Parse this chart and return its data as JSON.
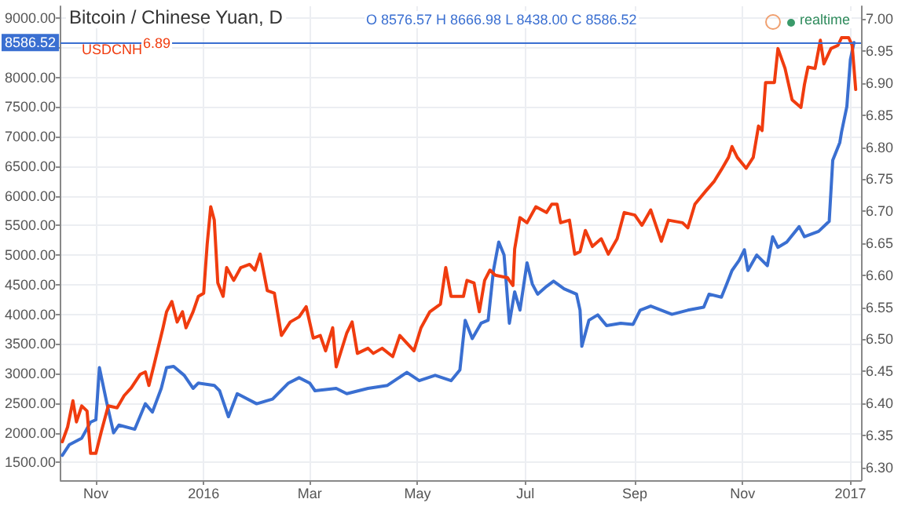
{
  "chart_data": {
    "type": "line",
    "title": "Bitcoin / Chinese Yuan, D",
    "annotations": [
      "O 8576.57 H 8666.98 L 8438.00 C 8586.52",
      "6.89",
      "realtime"
    ],
    "xlim": [
      "2015-10-12",
      "2017-01-07"
    ],
    "xticks": [
      {
        "value": "2015-11-01",
        "label": "Nov"
      },
      {
        "value": "2016-01-01",
        "label": "2016"
      },
      {
        "value": "2016-03-01",
        "label": "Mar"
      },
      {
        "value": "2016-05-01",
        "label": "May"
      },
      {
        "value": "2016-07-01",
        "label": "Jul"
      },
      {
        "value": "2016-09-01",
        "label": "Sep"
      },
      {
        "value": "2016-11-01",
        "label": "Nov"
      },
      {
        "value": "2017-01-01",
        "label": "2017"
      }
    ],
    "ylim": [
      1200,
      9200
    ],
    "yticks": [
      {
        "value": 1500,
        "label": "1500.00"
      },
      {
        "value": 2000,
        "label": "2000.00"
      },
      {
        "value": 2500,
        "label": "2500.00"
      },
      {
        "value": 3000,
        "label": "3000.00"
      },
      {
        "value": 3500,
        "label": "3500.00"
      },
      {
        "value": 4000,
        "label": "4000.00"
      },
      {
        "value": 4500,
        "label": "4500.00"
      },
      {
        "value": 5000,
        "label": "5000.00"
      },
      {
        "value": 5500,
        "label": "5500.00"
      },
      {
        "value": 6000,
        "label": "6000.00"
      },
      {
        "value": 6500,
        "label": "6500.00"
      },
      {
        "value": 7000,
        "label": "7000.00"
      },
      {
        "value": 7500,
        "label": "7500.00"
      },
      {
        "value": 8000,
        "label": "8000.00"
      },
      {
        "value": 8500,
        "label": null
      },
      {
        "value": 9000,
        "label": "9000.00"
      }
    ],
    "y2lim": [
      6.28,
      7.02
    ],
    "y2ticks": [
      {
        "value": 6.3,
        "label": "6.30"
      },
      {
        "value": 6.35,
        "label": "6.35"
      },
      {
        "value": 6.4,
        "label": "6.40"
      },
      {
        "value": 6.45,
        "label": "6.45"
      },
      {
        "value": 6.5,
        "label": "6.50"
      },
      {
        "value": 6.55,
        "label": "6.55"
      },
      {
        "value": 6.6,
        "label": "6.60"
      },
      {
        "value": 6.65,
        "label": "6.65"
      },
      {
        "value": 6.7,
        "label": "6.70"
      },
      {
        "value": 6.75,
        "label": "6.75"
      },
      {
        "value": 6.8,
        "label": "6.80"
      },
      {
        "value": 6.85,
        "label": "6.85"
      },
      {
        "value": 6.9,
        "label": "6.90"
      },
      {
        "value": 6.95,
        "label": "6.95"
      },
      {
        "value": 7,
        "label": "7.00"
      }
    ],
    "ref_lines": [
      {
        "axis": "y",
        "value": 8586.52,
        "label": "8586.52",
        "color": "#3a6fd1"
      }
    ],
    "grid": true,
    "legend": "top left",
    "marker": "none",
    "line_style": "solid",
    "series": [
      {
        "color": "#3a6fd1",
        "x": [
          "2015-10-13",
          "2015-10-17",
          "2015-10-24",
          "2015-10-29",
          "2015-11-01",
          "2015-11-03",
          "2015-11-07",
          "2015-11-11",
          "2015-11-14",
          "2015-11-23",
          "2015-11-29",
          "2015-12-03",
          "2015-12-08",
          "2015-12-11",
          "2015-12-15",
          "2015-12-21",
          "2015-12-26",
          "2015-12-29",
          "2016-01-07",
          "2016-01-10",
          "2016-01-15",
          "2016-01-20",
          "2016-01-31",
          "2016-02-09",
          "2016-02-18",
          "2016-02-24",
          "2016-03-01",
          "2016-03-04",
          "2016-03-16",
          "2016-03-22",
          "2016-04-03",
          "2016-04-14",
          "2016-04-25",
          "2016-05-02",
          "2016-05-11",
          "2016-05-20",
          "2016-05-25",
          "2016-05-28",
          "2016-06-01",
          "2016-06-06",
          "2016-06-10",
          "2016-06-13",
          "2016-06-16",
          "2016-06-19",
          "2016-06-22",
          "2016-06-25",
          "2016-06-28",
          "2016-07-02",
          "2016-07-05",
          "2016-07-08",
          "2016-07-13",
          "2016-07-17",
          "2016-07-23",
          "2016-07-30",
          "2016-08-01",
          "2016-08-02",
          "2016-08-06",
          "2016-08-11",
          "2016-08-16",
          "2016-08-24",
          "2016-08-31",
          "2016-09-04",
          "2016-09-10",
          "2016-09-22",
          "2016-10-01",
          "2016-10-10",
          "2016-10-13",
          "2016-10-20",
          "2016-10-23",
          "2016-10-26",
          "2016-10-30",
          "2016-11-02",
          "2016-11-04",
          "2016-11-09",
          "2016-11-15",
          "2016-11-18",
          "2016-11-21",
          "2016-11-26",
          "2016-12-03",
          "2016-12-06",
          "2016-12-14",
          "2016-12-20",
          "2016-12-22",
          "2016-12-26",
          "2016-12-27",
          "2016-12-30",
          "2017-01-01",
          "2017-01-03"
        ],
        "values": [
          1620,
          1800,
          1910,
          2180,
          2220,
          3100,
          2530,
          2000,
          2130,
          2060,
          2490,
          2350,
          2750,
          3100,
          3120,
          2970,
          2750,
          2840,
          2800,
          2710,
          2270,
          2660,
          2490,
          2570,
          2840,
          2930,
          2840,
          2710,
          2750,
          2660,
          2750,
          2800,
          3020,
          2880,
          2970,
          2880,
          3060,
          3900,
          3590,
          3850,
          3900,
          4740,
          5220,
          5000,
          3850,
          4380,
          4070,
          4870,
          4510,
          4340,
          4470,
          4560,
          4430,
          4340,
          4070,
          3460,
          3900,
          3990,
          3810,
          3850,
          3830,
          4070,
          4140,
          4000,
          4070,
          4120,
          4340,
          4290,
          4510,
          4740,
          4910,
          5090,
          4740,
          5000,
          4820,
          5310,
          5130,
          5220,
          5480,
          5310,
          5400,
          5570,
          6600,
          6900,
          7080,
          7510,
          8300,
          8586.52
        ]
      },
      {
        "name": "USDCNH",
        "color": "#f03c0f",
        "axis": "y2",
        "x": [
          "2015-10-13",
          "2015-10-16",
          "2015-10-19",
          "2015-10-21",
          "2015-10-24",
          "2015-10-27",
          "2015-10-29",
          "2015-11-01",
          "2015-11-04",
          "2015-11-08",
          "2015-11-13",
          "2015-11-17",
          "2015-11-21",
          "2015-11-26",
          "2015-11-29",
          "2015-12-01",
          "2015-12-04",
          "2015-12-09",
          "2015-12-11",
          "2015-12-14",
          "2015-12-17",
          "2015-12-20",
          "2015-12-22",
          "2015-12-26",
          "2015-12-29",
          "2016-01-01",
          "2016-01-03",
          "2016-01-05",
          "2016-01-07",
          "2016-01-09",
          "2016-01-12",
          "2016-01-14",
          "2016-01-18",
          "2016-01-22",
          "2016-01-27",
          "2016-01-30",
          "2016-02-02",
          "2016-02-06",
          "2016-02-10",
          "2016-02-14",
          "2016-02-19",
          "2016-02-24",
          "2016-02-28",
          "2016-03-03",
          "2016-03-07",
          "2016-03-10",
          "2016-03-14",
          "2016-03-16",
          "2016-03-22",
          "2016-03-25",
          "2016-03-28",
          "2016-04-03",
          "2016-04-06",
          "2016-04-11",
          "2016-04-17",
          "2016-04-21",
          "2016-04-29",
          "2016-05-03",
          "2016-05-08",
          "2016-05-14",
          "2016-05-17",
          "2016-05-20",
          "2016-05-27",
          "2016-05-29",
          "2016-06-02",
          "2016-06-05",
          "2016-06-08",
          "2016-06-11",
          "2016-06-14",
          "2016-06-21",
          "2016-06-24",
          "2016-06-25",
          "2016-06-28",
          "2016-07-02",
          "2016-07-07",
          "2016-07-13",
          "2016-07-16",
          "2016-07-19",
          "2016-07-21",
          "2016-07-26",
          "2016-07-29",
          "2016-08-01",
          "2016-08-04",
          "2016-08-08",
          "2016-08-13",
          "2016-08-17",
          "2016-08-22",
          "2016-08-26",
          "2016-09-01",
          "2016-09-05",
          "2016-09-10",
          "2016-09-16",
          "2016-09-20",
          "2016-09-28",
          "2016-10-01",
          "2016-10-05",
          "2016-10-11",
          "2016-10-16",
          "2016-10-20",
          "2016-10-24",
          "2016-10-26",
          "2016-10-29",
          "2016-11-03",
          "2016-11-07",
          "2016-11-10",
          "2016-11-12",
          "2016-11-14",
          "2016-11-19",
          "2016-11-21",
          "2016-11-25",
          "2016-11-29",
          "2016-12-04",
          "2016-12-06",
          "2016-12-08",
          "2016-12-12",
          "2016-12-15",
          "2016-12-17",
          "2016-12-21",
          "2016-12-25",
          "2016-12-27",
          "2016-12-31",
          "2017-01-02",
          "2017-01-04"
        ],
        "values": [
          6.34,
          6.363,
          6.404,
          6.371,
          6.396,
          6.388,
          6.322,
          6.322,
          6.355,
          6.396,
          6.393,
          6.412,
          6.424,
          6.445,
          6.449,
          6.428,
          6.461,
          6.518,
          6.543,
          6.559,
          6.527,
          6.543,
          6.518,
          6.543,
          6.567,
          6.572,
          6.649,
          6.707,
          6.686,
          6.588,
          6.567,
          6.612,
          6.592,
          6.612,
          6.617,
          6.608,
          6.633,
          6.576,
          6.572,
          6.506,
          6.527,
          6.535,
          6.551,
          6.502,
          6.506,
          6.482,
          6.518,
          6.457,
          6.51,
          6.527,
          6.478,
          6.486,
          6.478,
          6.486,
          6.473,
          6.506,
          6.482,
          6.518,
          6.543,
          6.555,
          6.612,
          6.567,
          6.567,
          6.592,
          6.588,
          6.543,
          6.592,
          6.608,
          6.6,
          6.596,
          6.584,
          6.641,
          6.69,
          6.682,
          6.707,
          6.698,
          6.711,
          6.711,
          6.682,
          6.686,
          6.633,
          6.637,
          6.67,
          6.645,
          6.657,
          6.633,
          6.657,
          6.698,
          6.694,
          6.678,
          6.702,
          6.653,
          6.686,
          6.682,
          6.674,
          6.711,
          6.731,
          6.747,
          6.765,
          6.784,
          6.801,
          6.784,
          6.767,
          6.784,
          6.833,
          6.826,
          6.901,
          6.901,
          6.954,
          6.923,
          6.874,
          6.862,
          6.898,
          6.925,
          6.923,
          6.967,
          6.93,
          6.954,
          6.959,
          6.971,
          6.971,
          6.959,
          6.89
        ]
      }
    ]
  }
}
